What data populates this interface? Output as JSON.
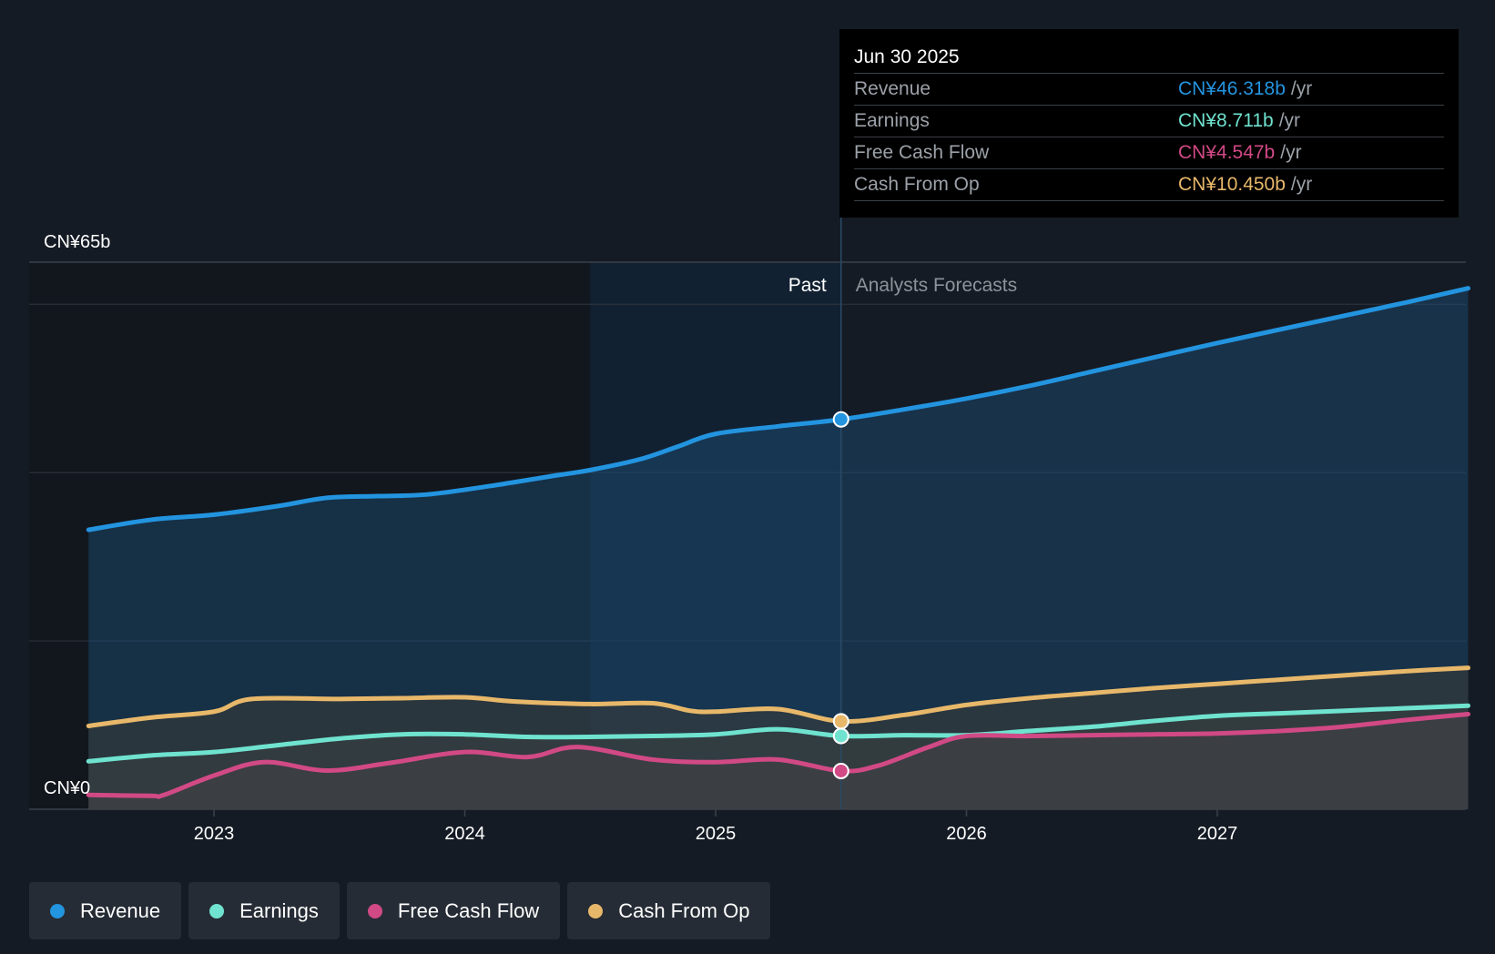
{
  "chart_data": {
    "type": "area",
    "y_top_label": "CN¥65b",
    "y_zero_label": "CN¥0",
    "ylim": [
      0,
      65
    ],
    "x_ticks": [
      "2023",
      "2024",
      "2025",
      "2026",
      "2027"
    ],
    "past_label": "Past",
    "forecast_label": "Analysts Forecasts",
    "series": [
      {
        "name": "Revenue",
        "color": "#2394df",
        "points": [
          [
            2022.5,
            33.2
          ],
          [
            2022.75,
            34.4
          ],
          [
            2023.0,
            35.0
          ],
          [
            2023.25,
            36.0
          ],
          [
            2023.45,
            37.0
          ],
          [
            2023.65,
            37.2
          ],
          [
            2023.85,
            37.4
          ],
          [
            2024.1,
            38.4
          ],
          [
            2024.35,
            39.6
          ],
          [
            2024.5,
            40.3
          ],
          [
            2024.7,
            41.6
          ],
          [
            2024.85,
            43.1
          ],
          [
            2025.0,
            44.6
          ],
          [
            2025.25,
            45.5
          ],
          [
            2025.5,
            46.318
          ],
          [
            2025.75,
            47.5
          ],
          [
            2026.0,
            48.8
          ],
          [
            2026.25,
            50.3
          ],
          [
            2026.5,
            52.0
          ],
          [
            2026.75,
            53.7
          ],
          [
            2027.0,
            55.4
          ],
          [
            2027.25,
            57.0
          ],
          [
            2027.5,
            58.6
          ],
          [
            2027.75,
            60.2
          ],
          [
            2028.0,
            61.9
          ]
        ]
      },
      {
        "name": "Earnings",
        "color": "#6fe3cf",
        "points": [
          [
            2022.5,
            5.7
          ],
          [
            2022.75,
            6.4
          ],
          [
            2023.0,
            6.8
          ],
          [
            2023.25,
            7.6
          ],
          [
            2023.5,
            8.4
          ],
          [
            2023.75,
            8.9
          ],
          [
            2024.0,
            8.9
          ],
          [
            2024.25,
            8.6
          ],
          [
            2024.5,
            8.6
          ],
          [
            2024.75,
            8.7
          ],
          [
            2025.0,
            8.9
          ],
          [
            2025.25,
            9.5
          ],
          [
            2025.5,
            8.711
          ],
          [
            2025.75,
            8.8
          ],
          [
            2026.0,
            8.8
          ],
          [
            2026.25,
            9.3
          ],
          [
            2026.5,
            9.8
          ],
          [
            2026.75,
            10.5
          ],
          [
            2027.0,
            11.1
          ],
          [
            2027.25,
            11.4
          ],
          [
            2027.5,
            11.7
          ],
          [
            2027.75,
            12.0
          ],
          [
            2028.0,
            12.3
          ]
        ]
      },
      {
        "name": "Free Cash Flow",
        "color": "#d14985",
        "points": [
          [
            2022.5,
            1.7
          ],
          [
            2022.75,
            1.6
          ],
          [
            2022.8,
            1.7
          ],
          [
            2023.0,
            4.0
          ],
          [
            2023.2,
            5.6
          ],
          [
            2023.45,
            4.6
          ],
          [
            2023.7,
            5.5
          ],
          [
            2024.0,
            6.8
          ],
          [
            2024.25,
            6.2
          ],
          [
            2024.45,
            7.4
          ],
          [
            2024.75,
            5.9
          ],
          [
            2025.0,
            5.6
          ],
          [
            2025.25,
            5.9
          ],
          [
            2025.5,
            4.547
          ],
          [
            2025.65,
            5.2
          ],
          [
            2025.85,
            7.4
          ],
          [
            2026.0,
            8.7
          ],
          [
            2026.25,
            8.7
          ],
          [
            2026.5,
            8.8
          ],
          [
            2026.75,
            8.9
          ],
          [
            2027.0,
            9.0
          ],
          [
            2027.25,
            9.3
          ],
          [
            2027.5,
            9.8
          ],
          [
            2027.75,
            10.6
          ],
          [
            2028.0,
            11.3
          ]
        ]
      },
      {
        "name": "Cash From Op",
        "color": "#e8b86a",
        "points": [
          [
            2022.5,
            9.9
          ],
          [
            2022.75,
            10.9
          ],
          [
            2023.0,
            11.6
          ],
          [
            2023.15,
            13.1
          ],
          [
            2023.5,
            13.1
          ],
          [
            2023.75,
            13.2
          ],
          [
            2024.0,
            13.3
          ],
          [
            2024.2,
            12.8
          ],
          [
            2024.5,
            12.5
          ],
          [
            2024.75,
            12.6
          ],
          [
            2024.9,
            11.7
          ],
          [
            2025.0,
            11.6
          ],
          [
            2025.25,
            11.9
          ],
          [
            2025.5,
            10.45
          ],
          [
            2025.75,
            11.2
          ],
          [
            2026.0,
            12.4
          ],
          [
            2026.25,
            13.2
          ],
          [
            2026.5,
            13.8
          ],
          [
            2026.75,
            14.4
          ],
          [
            2027.0,
            14.9
          ],
          [
            2027.25,
            15.4
          ],
          [
            2027.5,
            15.9
          ],
          [
            2027.75,
            16.4
          ],
          [
            2028.0,
            16.8
          ]
        ]
      }
    ],
    "highlight_x": 2025.5,
    "past_shade_start": 2024.5
  },
  "tooltip": {
    "date": "Jun 30 2025",
    "unit": "/yr",
    "rows": [
      {
        "label": "Revenue",
        "value": "CN¥46.318b",
        "color": "#2394df"
      },
      {
        "label": "Earnings",
        "value": "CN¥8.711b",
        "color": "#6fe3cf"
      },
      {
        "label": "Free Cash Flow",
        "value": "CN¥4.547b",
        "color": "#d14985"
      },
      {
        "label": "Cash From Op",
        "value": "CN¥10.450b",
        "color": "#e8b86a"
      }
    ]
  },
  "legend": [
    {
      "label": "Revenue",
      "color": "#2394df"
    },
    {
      "label": "Earnings",
      "color": "#6fe3cf"
    },
    {
      "label": "Free Cash Flow",
      "color": "#d14985"
    },
    {
      "label": "Cash From Op",
      "color": "#e8b86a"
    }
  ]
}
